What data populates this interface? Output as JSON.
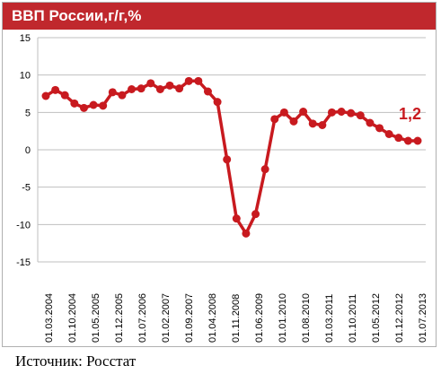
{
  "header": {
    "title": "ВВП России,г/г,%"
  },
  "source": "Источник: Росстат",
  "colors": {
    "accent": "#c0282d",
    "series": "#c81a1f",
    "grid": "#bfbfbf"
  },
  "chart_data": {
    "type": "line",
    "title": "ВВП России,г/г,%",
    "xlabel": "",
    "ylabel": "",
    "ylim": [
      -15,
      15
    ],
    "yticks": [
      15,
      10,
      5,
      0,
      -5,
      -10,
      -15
    ],
    "grid": true,
    "xtick_labels": [
      "01.03.2004",
      "01.10.2004",
      "01.05.2005",
      "01.12.2005",
      "01.07.2006",
      "01.02.2007",
      "01.09.2007",
      "01.04.2008",
      "01.11.2008",
      "01.06.2009",
      "01.01.2010",
      "01.08.2010",
      "01.03.2011",
      "01.10.2011",
      "01.05.2012",
      "01.12.2012",
      "01.07.2013"
    ],
    "series": [
      {
        "name": "",
        "values": [
          7.2,
          8.0,
          7.3,
          6.2,
          5.6,
          6.0,
          5.9,
          7.7,
          7.3,
          8.1,
          8.2,
          8.9,
          8.1,
          8.6,
          8.2,
          9.2,
          9.2,
          7.8,
          6.4,
          -1.3,
          -9.2,
          -11.2,
          -8.6,
          -2.6,
          4.1,
          5.0,
          3.8,
          5.1,
          3.5,
          3.3,
          5.0,
          5.1,
          4.9,
          4.6,
          3.6,
          2.9,
          2.1,
          1.6,
          1.2,
          1.2
        ]
      }
    ],
    "annotation": "1,2"
  }
}
